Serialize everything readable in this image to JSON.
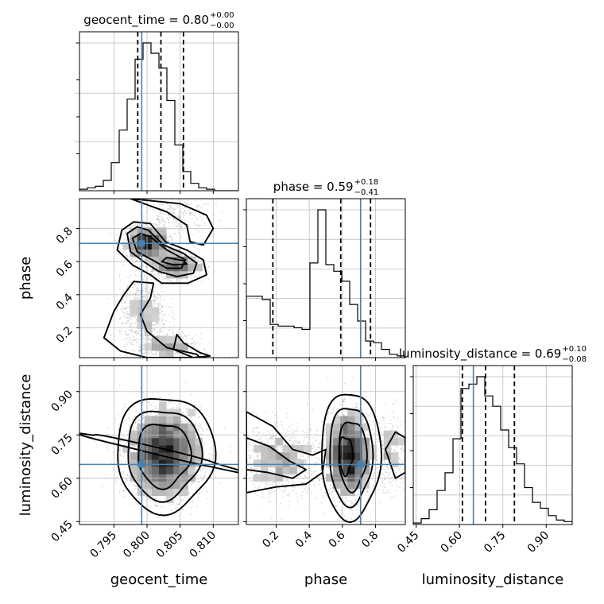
{
  "chart_data": {
    "type": "corner",
    "parameters": [
      "geocent_time",
      "phase",
      "luminosity_distance"
    ],
    "truth": {
      "geocent_time": 0.7992,
      "phase": 0.71,
      "luminosity_distance": 0.648
    },
    "titles": [
      {
        "param": "geocent_time",
        "median": "0.80",
        "plus": "+0.00",
        "minus": "−0.00"
      },
      {
        "param": "phase",
        "median": "0.59",
        "plus": "+0.18",
        "minus": "−0.41"
      },
      {
        "param": "luminosity_distance",
        "median": "0.69",
        "plus": "+0.10",
        "minus": "−0.08"
      }
    ],
    "ranges": {
      "geocent_time": [
        0.7898,
        0.8138
      ],
      "phase": [
        0.02,
        0.98
      ],
      "luminosity_distance": [
        0.44,
        0.99
      ]
    },
    "ticks": {
      "geocent_time": [
        "0.795",
        "0.800",
        "0.805",
        "0.810"
      ],
      "phase": [
        "0.2",
        "0.4",
        "0.6",
        "0.8"
      ],
      "luminosity_distance": [
        "0.45",
        "0.60",
        "0.75",
        "0.90"
      ]
    },
    "quantiles": {
      "geocent_time": [
        0.7986,
        0.8021,
        0.8055
      ],
      "phase": [
        0.18,
        0.59,
        0.77
      ],
      "luminosity_distance": [
        0.61,
        0.69,
        0.79
      ]
    },
    "histograms": {
      "geocent_time": {
        "start": 0.7898,
        "width": 0.0012,
        "heights": [
          0.01,
          0.02,
          0.03,
          0.07,
          0.19,
          0.41,
          0.62,
          0.89,
          1.0,
          0.93,
          0.83,
          0.61,
          0.31,
          0.13,
          0.05,
          0.02,
          0.01,
          0.0,
          0.0,
          0.0
        ]
      },
      "phase": {
        "start": 0.02,
        "width": 0.048,
        "heights": [
          0.37,
          0.37,
          0.35,
          0.2,
          0.19,
          0.19,
          0.18,
          0.17,
          0.57,
          0.89,
          0.56,
          0.52,
          0.46,
          0.32,
          0.22,
          0.1,
          0.09,
          0.05,
          0.02,
          0.01
        ]
      },
      "luminosity_distance": {
        "start": 0.44,
        "width": 0.0275,
        "heights": [
          0.01,
          0.04,
          0.1,
          0.23,
          0.35,
          0.58,
          0.92,
          0.95,
          1.0,
          0.87,
          0.8,
          0.64,
          0.52,
          0.41,
          0.25,
          0.15,
          0.11,
          0.06,
          0.03,
          0.02
        ]
      }
    },
    "grid": true
  }
}
